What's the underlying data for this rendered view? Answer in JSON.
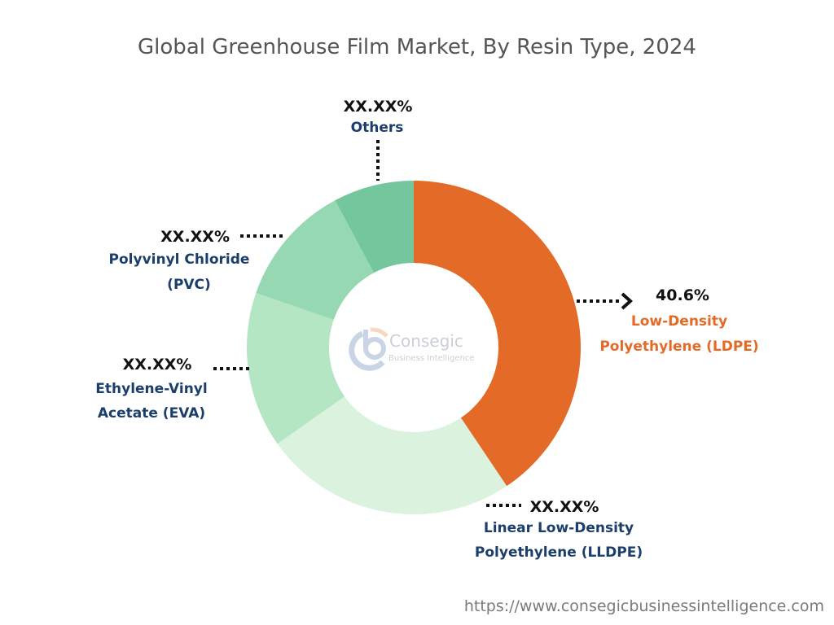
{
  "chart_data": {
    "type": "pie",
    "variant": "donut",
    "title": "Global Greenhouse Film Market, By Resin Type, 2024",
    "slices": [
      {
        "label_lines": [
          "Low-Density",
          "Polyethylene (LDPE)"
        ],
        "value": 40.6,
        "display": "40.6%",
        "color": "#E36A27"
      },
      {
        "label_lines": [
          "Linear Low-Density",
          "Polyethylene (LLDPE)"
        ],
        "value": 24.6,
        "display": "XX.XX%",
        "color": "#DAF2DE"
      },
      {
        "label_lines": [
          "Ethylene-Vinyl",
          "Acetate (EVA)"
        ],
        "value": 15.1,
        "display": "XX.XX%",
        "color": "#B5E6C4"
      },
      {
        "label_lines": [
          "Polyvinyl Chloride",
          "(PVC)"
        ],
        "value": 11.9,
        "display": "XX.XX%",
        "color": "#96D8B2"
      },
      {
        "label_lines": [
          "Others"
        ],
        "value": 7.8,
        "display": "XX.XX%",
        "color": "#74C69D"
      }
    ],
    "start_angle": "12 o'clock, clockwise"
  },
  "logo": {
    "name": "Consegic",
    "tagline": "Business Intelligence"
  },
  "footer": {
    "url": "https://www.consegicbusinessintelligence.com"
  }
}
